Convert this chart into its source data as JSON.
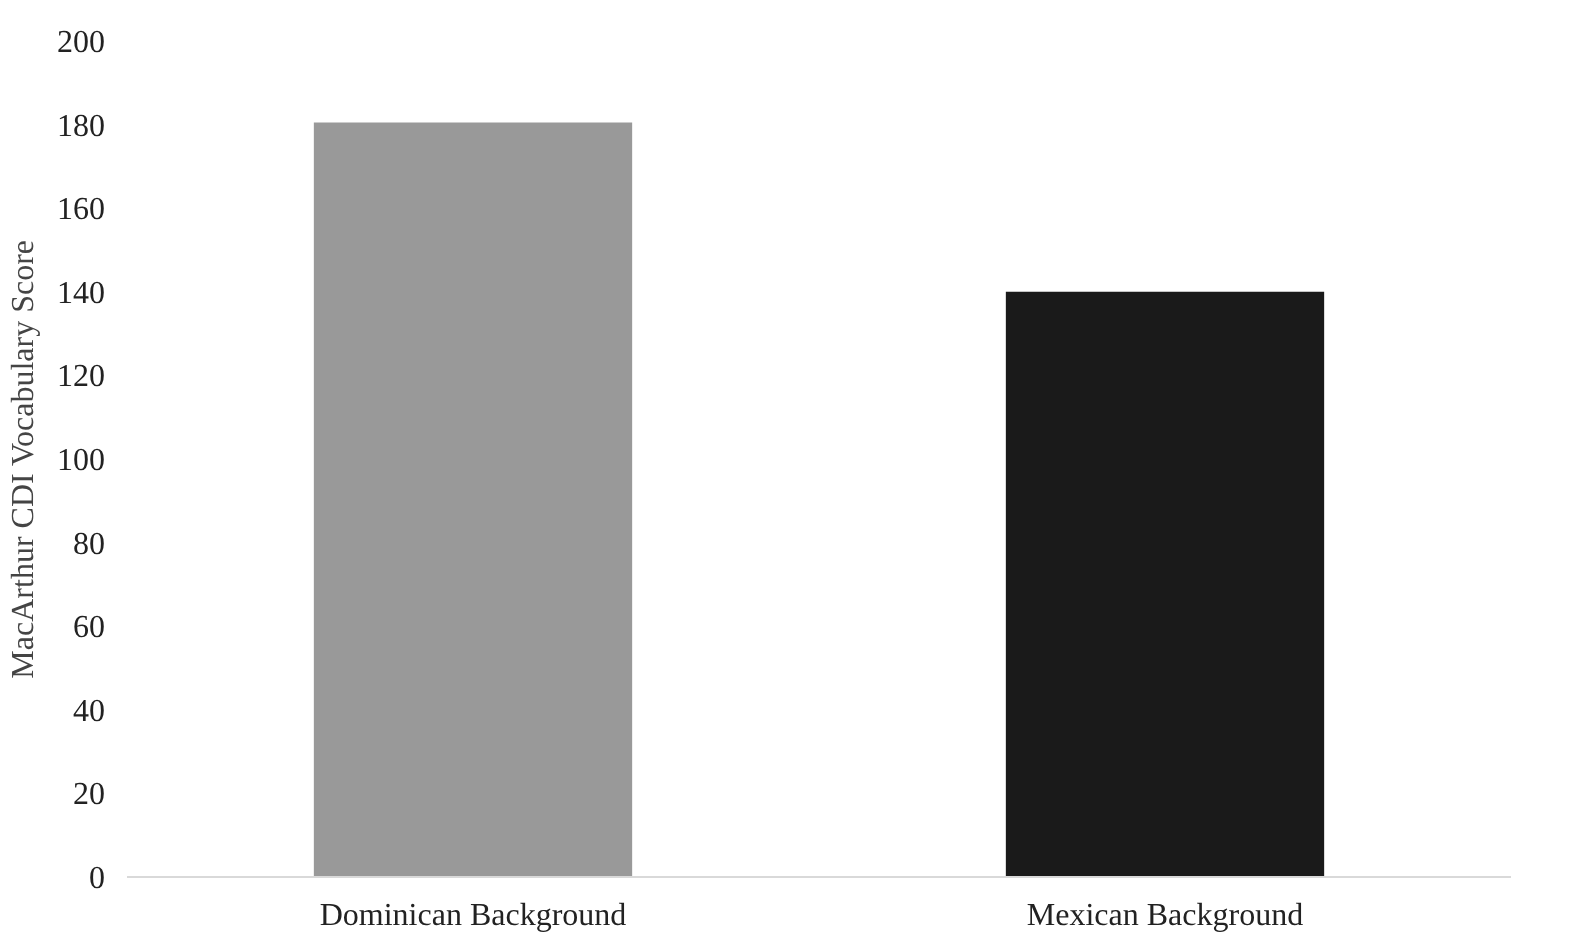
{
  "chart_data": {
    "type": "bar",
    "ylabel": "MacArthur CDI Vocabulary Score",
    "categories": [
      "Dominican Background",
      "Mexican Background"
    ],
    "values": [
      180.5,
      140
    ],
    "colors": [
      "#999999",
      "#1a1a1a"
    ],
    "ylim": [
      0,
      200
    ],
    "yticks": [
      0,
      20,
      40,
      60,
      80,
      100,
      120,
      140,
      160,
      180,
      200
    ],
    "grid": false
  }
}
